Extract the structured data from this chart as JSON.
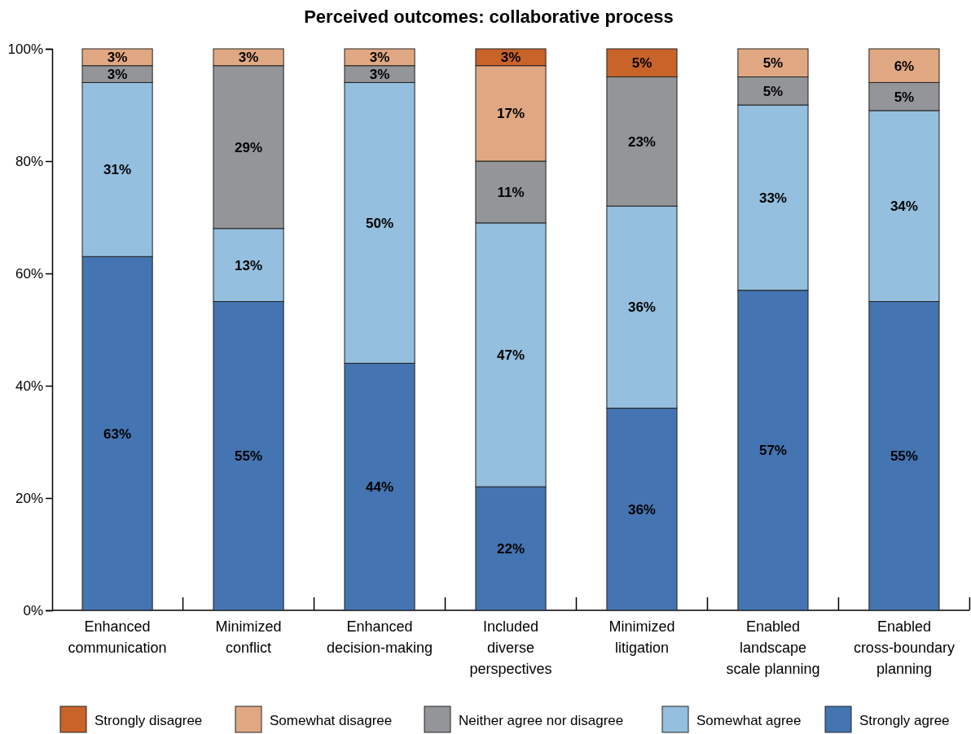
{
  "chart_data": {
    "type": "bar",
    "title": "Perceived outcomes: collaborative process",
    "categories": [
      "Enhanced\ncommunication",
      "Minimized\nconflict",
      "Enhanced\ndecision-making",
      "Included\ndiverse\nperspectives",
      "Minimized\nlitigation",
      "Enabled\nlandscape\nscale planning",
      "Enabled\ncross-boundary\nplanning"
    ],
    "stacked": true,
    "series": [
      {
        "name": "Strongly agree",
        "color": "#4474b1",
        "values": [
          63,
          55,
          44,
          22,
          36,
          57,
          55
        ],
        "value_labels": [
          "63%",
          "55%",
          "44%",
          "22%",
          "36%",
          "57%",
          "55%"
        ]
      },
      {
        "name": "Somewhat agree",
        "color": "#94bfde",
        "values": [
          31,
          13,
          50,
          47,
          36,
          33,
          34
        ],
        "value_labels": [
          "31%",
          "13%",
          "50%",
          "47%",
          "36%",
          "33%",
          "34%"
        ]
      },
      {
        "name": "Neither agree nor disagree",
        "color": "#939598",
        "values": [
          3,
          29,
          3,
          11,
          23,
          5,
          5
        ],
        "value_labels": [
          "3%",
          "29%",
          "3%",
          "11%",
          "23%",
          "5%",
          "5%"
        ]
      },
      {
        "name": "Somewhat disagree",
        "color": "#e0a882",
        "values": [
          3,
          3,
          3,
          17,
          null,
          5,
          6
        ],
        "value_labels": [
          "3%",
          "3%",
          "3%",
          "17%",
          null,
          "5%",
          "6%"
        ]
      },
      {
        "name": "Strongly disagree",
        "color": "#c8632a",
        "values": [
          null,
          null,
          null,
          3,
          5,
          null,
          null
        ],
        "value_labels": [
          null,
          null,
          null,
          "3%",
          "5%",
          null,
          null
        ]
      }
    ],
    "ylim": [
      0,
      100
    ],
    "yticks": [
      {
        "value": 0,
        "label": "0%"
      },
      {
        "value": 20,
        "label": "20%"
      },
      {
        "value": 40,
        "label": "40%"
      },
      {
        "value": 60,
        "label": "60%"
      },
      {
        "value": 80,
        "label": "80%"
      },
      {
        "value": 100,
        "label": "100%"
      }
    ],
    "grid": false,
    "legend": "bottom"
  }
}
